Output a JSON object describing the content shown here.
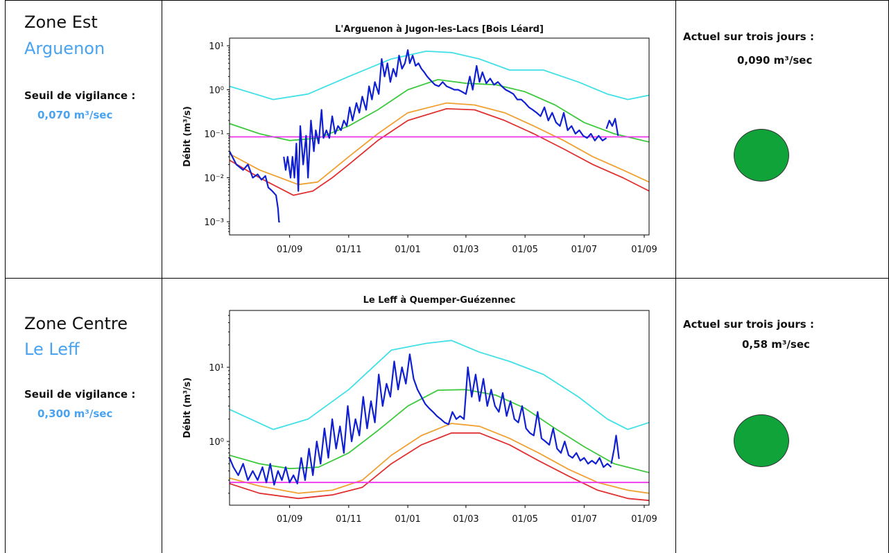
{
  "status_color": "#0fa33a",
  "panels": [
    {
      "zone": "Zone Est",
      "river": "Arguenon",
      "seuil_label": "Seuil de vigilance :",
      "seuil_value": "0,070 m³/sec",
      "actuel_label": "Actuel sur trois jours :",
      "actuel_value": "0,090 m³/sec",
      "status": "green"
    },
    {
      "zone": "Zone Centre",
      "river": "Le Leff",
      "seuil_label": "Seuil de vigilance :",
      "seuil_value": "0,300 m³/sec",
      "actuel_label": "Actuel sur trois jours :",
      "actuel_value": "0,58 m³/sec",
      "status": "green"
    }
  ],
  "chart_data": [
    {
      "type": "line",
      "title": "L'Arguenon à Jugon-les-Lacs [Bois Léard]",
      "ylabel": "Débit (m³/s)",
      "yscale": "log",
      "ylim": [
        0.0006,
        15
      ],
      "yticks": [
        "10⁻³",
        "10⁻²",
        "10⁻¹",
        "10⁰",
        "10¹"
      ],
      "xlim": [
        "2023-07-01",
        "2024-09-06"
      ],
      "xticks": [
        "01/09",
        "01/11",
        "01/01",
        "01/03",
        "01/05",
        "01/07",
        "01/09"
      ],
      "series": [
        {
          "color": "#3fe0e6",
          "x": [
            "2023-07-01",
            "2023-08-15",
            "2023-09-20",
            "2023-11-01",
            "2023-12-15",
            "2024-01-20",
            "2024-02-15",
            "2024-03-15",
            "2024-04-15",
            "2024-05-20",
            "2024-06-25",
            "2024-07-25",
            "2024-08-15",
            "2024-09-06"
          ],
          "y": [
            1.2,
            0.6,
            0.8,
            2.0,
            5.0,
            7.5,
            7.0,
            5.0,
            2.8,
            2.8,
            1.5,
            0.8,
            0.6,
            0.75
          ]
        },
        {
          "color": "#3dc93d",
          "x": [
            "2023-07-01",
            "2023-08-01",
            "2023-09-01",
            "2023-10-01",
            "2023-11-01",
            "2023-12-01",
            "2024-01-01",
            "2024-02-01",
            "2024-03-01",
            "2024-04-01",
            "2024-05-01",
            "2024-06-01",
            "2024-07-01",
            "2024-08-01",
            "2024-09-06"
          ],
          "y": [
            0.17,
            0.1,
            0.07,
            0.08,
            0.15,
            0.35,
            1.0,
            1.7,
            1.4,
            1.3,
            0.9,
            0.45,
            0.18,
            0.1,
            0.065
          ]
        },
        {
          "color": "#f0a030",
          "x": [
            "2023-07-01",
            "2023-08-01",
            "2023-09-10",
            "2023-09-30",
            "2023-11-01",
            "2023-12-01",
            "2024-01-01",
            "2024-02-10",
            "2024-03-10",
            "2024-04-10",
            "2024-05-10",
            "2024-06-10",
            "2024-07-10",
            "2024-08-10",
            "2024-09-06"
          ],
          "y": [
            0.035,
            0.015,
            0.007,
            0.008,
            0.03,
            0.1,
            0.3,
            0.5,
            0.45,
            0.3,
            0.15,
            0.07,
            0.03,
            0.015,
            0.008
          ]
        },
        {
          "color": "#e03030",
          "x": [
            "2023-07-01",
            "2023-08-01",
            "2023-09-05",
            "2023-09-25",
            "2023-10-15",
            "2023-11-01",
            "2023-12-01",
            "2024-01-01",
            "2024-02-10",
            "2024-03-10",
            "2024-04-10",
            "2024-05-10",
            "2024-06-10",
            "2024-07-10",
            "2024-08-10",
            "2024-09-06"
          ],
          "y": [
            0.025,
            0.01,
            0.004,
            0.005,
            0.01,
            0.02,
            0.07,
            0.2,
            0.37,
            0.35,
            0.2,
            0.1,
            0.045,
            0.02,
            0.01,
            0.005
          ]
        },
        {
          "color": "#ee33ee",
          "x": [
            "2023-07-01",
            "2024-09-06"
          ],
          "y": [
            0.085,
            0.085
          ]
        },
        {
          "color": "#1020d0",
          "x": [
            "2023-07-01",
            "2023-07-08",
            "2023-07-15",
            "2023-07-20",
            "2023-07-25",
            "2023-07-30",
            "2023-08-03",
            "2023-08-07",
            "2023-08-10",
            "2023-08-14",
            "2023-08-18",
            "2023-08-20",
            "2023-08-21",
            "2023-08-22"
          ],
          "y": [
            0.04,
            0.02,
            0.015,
            0.02,
            0.01,
            0.012,
            0.009,
            0.011,
            0.006,
            0.005,
            0.004,
            0.002,
            0.001,
            0.001
          ]
        },
        {
          "color": "#1020d0",
          "x": [
            "2023-08-26",
            "2023-08-28",
            "2023-08-30",
            "2023-09-02",
            "2023-09-04",
            "2023-09-06",
            "2023-09-08",
            "2023-09-10",
            "2023-09-12",
            "2023-09-15",
            "2023-09-18",
            "2023-09-20",
            "2023-09-23",
            "2023-09-26",
            "2023-09-28",
            "2023-10-01",
            "2023-10-04",
            "2023-10-06",
            "2023-10-09",
            "2023-10-12",
            "2023-10-15",
            "2023-10-18",
            "2023-10-21",
            "2023-10-24",
            "2023-10-27",
            "2023-10-30",
            "2023-11-02",
            "2023-11-05",
            "2023-11-09",
            "2023-11-12",
            "2023-11-15",
            "2023-11-19",
            "2023-11-22",
            "2023-11-25",
            "2023-11-28",
            "2023-12-02",
            "2023-12-05",
            "2023-12-08",
            "2023-12-11",
            "2023-12-14",
            "2023-12-17",
            "2023-12-20",
            "2023-12-23",
            "2023-12-26",
            "2023-12-29",
            "2024-01-01",
            "2024-01-03",
            "2024-01-06",
            "2024-01-09",
            "2024-01-12",
            "2024-01-15",
            "2024-01-18",
            "2024-01-21",
            "2024-01-25",
            "2024-01-29",
            "2024-02-02",
            "2024-02-06",
            "2024-02-10",
            "2024-02-14",
            "2024-02-18",
            "2024-02-22",
            "2024-02-26",
            "2024-03-01",
            "2024-03-05",
            "2024-03-08",
            "2024-03-12",
            "2024-03-15",
            "2024-03-18",
            "2024-03-22",
            "2024-03-26",
            "2024-03-30",
            "2024-04-03",
            "2024-04-07",
            "2024-04-11",
            "2024-04-15",
            "2024-04-19",
            "2024-04-23",
            "2024-04-27",
            "2024-05-01",
            "2024-05-05",
            "2024-05-09",
            "2024-05-13",
            "2024-05-17",
            "2024-05-21",
            "2024-05-25",
            "2024-05-29",
            "2024-06-02",
            "2024-06-06",
            "2024-06-10",
            "2024-06-14",
            "2024-06-18",
            "2024-06-22",
            "2024-06-26",
            "2024-06-30",
            "2024-07-04",
            "2024-07-08",
            "2024-07-12",
            "2024-07-16",
            "2024-07-20",
            "2024-07-24"
          ],
          "y": [
            0.03,
            0.015,
            0.03,
            0.01,
            0.03,
            0.01,
            0.06,
            0.005,
            0.15,
            0.02,
            0.09,
            0.01,
            0.2,
            0.04,
            0.12,
            0.06,
            0.35,
            0.08,
            0.12,
            0.08,
            0.25,
            0.1,
            0.15,
            0.12,
            0.2,
            0.15,
            0.4,
            0.2,
            0.5,
            0.3,
            0.7,
            0.35,
            1.2,
            0.6,
            1.5,
            0.8,
            5.0,
            2.0,
            4.0,
            1.5,
            3.0,
            2.0,
            6.0,
            3.0,
            4.0,
            8.0,
            4.0,
            6.0,
            3.5,
            4.0,
            3.0,
            2.5,
            2.0,
            1.6,
            1.3,
            1.2,
            1.5,
            1.2,
            1.1,
            1.0,
            1.0,
            0.9,
            0.8,
            2.0,
            1.0,
            3.5,
            1.5,
            2.5,
            1.4,
            1.8,
            1.3,
            1.5,
            1.2,
            1.0,
            0.9,
            0.8,
            0.6,
            0.6,
            0.5,
            0.4,
            0.35,
            0.3,
            0.25,
            0.4,
            0.2,
            0.3,
            0.18,
            0.15,
            0.3,
            0.12,
            0.15,
            0.1,
            0.12,
            0.09,
            0.08,
            0.1,
            0.07,
            0.09,
            0.07,
            0.08
          ]
        },
        {
          "color": "#1020d0",
          "x": [
            "2024-07-24",
            "2024-07-27",
            "2024-07-30",
            "2024-08-02",
            "2024-08-05"
          ],
          "y": [
            0.13,
            0.2,
            0.15,
            0.22,
            0.09
          ]
        }
      ]
    },
    {
      "type": "line",
      "title": "Le Leff à Quemper-Guézennec",
      "ylabel": "Débit (m³/s)",
      "yscale": "log",
      "ylim": [
        0.12,
        60
      ],
      "yticks": [
        "10⁰",
        "10¹"
      ],
      "xlim": [
        "2023-07-01",
        "2024-09-06"
      ],
      "xticks": [
        "01/09",
        "01/11",
        "01/01",
        "01/03",
        "01/05",
        "01/07",
        "01/09"
      ],
      "series": [
        {
          "color": "#3fe0e6",
          "x": [
            "2023-07-01",
            "2023-08-15",
            "2023-09-20",
            "2023-11-01",
            "2023-12-15",
            "2024-01-20",
            "2024-02-15",
            "2024-03-15",
            "2024-04-15",
            "2024-05-20",
            "2024-06-25",
            "2024-07-25",
            "2024-08-15",
            "2024-09-06"
          ],
          "y": [
            2.7,
            1.45,
            2.0,
            5.0,
            17,
            21,
            23,
            16,
            12,
            8,
            4.0,
            2.0,
            1.45,
            1.8
          ]
        },
        {
          "color": "#3dc93d",
          "x": [
            "2023-07-01",
            "2023-08-01",
            "2023-09-01",
            "2023-10-01",
            "2023-11-01",
            "2023-12-01",
            "2024-01-01",
            "2024-02-01",
            "2024-03-01",
            "2024-04-01",
            "2024-05-01",
            "2024-06-01",
            "2024-07-01",
            "2024-08-01",
            "2024-09-06"
          ],
          "y": [
            0.65,
            0.5,
            0.43,
            0.45,
            0.7,
            1.4,
            3.0,
            4.9,
            5.0,
            4.2,
            2.8,
            1.5,
            0.85,
            0.5,
            0.38
          ]
        },
        {
          "color": "#f0a030",
          "x": [
            "2023-07-01",
            "2023-08-01",
            "2023-09-10",
            "2023-10-15",
            "2023-11-15",
            "2023-12-15",
            "2024-01-15",
            "2024-02-15",
            "2024-03-15",
            "2024-04-15",
            "2024-05-15",
            "2024-06-15",
            "2024-07-15",
            "2024-08-15",
            "2024-09-06"
          ],
          "y": [
            0.32,
            0.25,
            0.2,
            0.22,
            0.3,
            0.65,
            1.2,
            1.75,
            1.6,
            1.1,
            0.7,
            0.42,
            0.28,
            0.22,
            0.2
          ]
        },
        {
          "color": "#e03030",
          "x": [
            "2023-07-01",
            "2023-08-01",
            "2023-09-10",
            "2023-10-15",
            "2023-11-15",
            "2023-12-15",
            "2024-01-15",
            "2024-02-15",
            "2024-03-15",
            "2024-04-15",
            "2024-05-15",
            "2024-06-15",
            "2024-07-15",
            "2024-08-15",
            "2024-09-06"
          ],
          "y": [
            0.27,
            0.2,
            0.17,
            0.19,
            0.24,
            0.5,
            0.9,
            1.3,
            1.3,
            0.9,
            0.55,
            0.34,
            0.22,
            0.17,
            0.16
          ]
        },
        {
          "color": "#ee33ee",
          "x": [
            "2023-07-01",
            "2024-09-06"
          ],
          "y": [
            0.28,
            0.28
          ]
        },
        {
          "color": "#1020d0",
          "x": [
            "2023-07-01",
            "2023-07-05",
            "2023-07-10",
            "2023-07-15",
            "2023-07-20",
            "2023-07-25",
            "2023-07-30",
            "2023-08-04",
            "2023-08-08",
            "2023-08-12",
            "2023-08-16",
            "2023-08-20",
            "2023-08-24",
            "2023-08-28",
            "2023-09-01",
            "2023-09-05",
            "2023-09-09",
            "2023-09-13",
            "2023-09-17",
            "2023-09-21",
            "2023-09-25",
            "2023-09-29",
            "2023-10-03",
            "2023-10-07",
            "2023-10-11",
            "2023-10-15",
            "2023-10-19",
            "2023-10-23",
            "2023-10-27",
            "2023-10-31",
            "2023-11-04",
            "2023-11-08",
            "2023-11-12",
            "2023-11-16",
            "2023-11-20",
            "2023-11-24",
            "2023-11-28",
            "2023-12-02",
            "2023-12-06",
            "2023-12-10",
            "2023-12-14",
            "2023-12-18",
            "2023-12-22",
            "2023-12-26",
            "2023-12-30",
            "2024-01-03",
            "2024-01-07",
            "2024-01-11",
            "2024-01-15",
            "2024-01-19",
            "2024-01-23",
            "2024-01-27",
            "2024-01-31",
            "2024-02-04",
            "2024-02-08",
            "2024-02-12",
            "2024-02-16",
            "2024-02-20",
            "2024-02-24",
            "2024-02-28",
            "2024-03-03",
            "2024-03-07",
            "2024-03-11",
            "2024-03-15",
            "2024-03-19",
            "2024-03-23",
            "2024-03-27",
            "2024-03-31",
            "2024-04-04",
            "2024-04-08",
            "2024-04-12",
            "2024-04-16",
            "2024-04-20",
            "2024-04-24",
            "2024-04-28",
            "2024-05-02",
            "2024-05-06",
            "2024-05-10",
            "2024-05-14",
            "2024-05-18",
            "2024-05-22",
            "2024-05-26",
            "2024-05-30",
            "2024-06-03",
            "2024-06-07",
            "2024-06-11",
            "2024-06-15",
            "2024-06-19",
            "2024-06-23",
            "2024-06-27",
            "2024-07-01",
            "2024-07-05",
            "2024-07-09",
            "2024-07-13",
            "2024-07-17",
            "2024-07-21",
            "2024-07-25",
            "2024-07-29"
          ],
          "y": [
            0.6,
            0.45,
            0.35,
            0.5,
            0.3,
            0.4,
            0.3,
            0.45,
            0.28,
            0.5,
            0.26,
            0.4,
            0.3,
            0.45,
            0.28,
            0.35,
            0.27,
            0.6,
            0.3,
            0.8,
            0.35,
            1.0,
            0.5,
            1.5,
            0.6,
            2.0,
            0.8,
            1.6,
            0.7,
            3.0,
            1.0,
            2.0,
            1.2,
            4.0,
            1.5,
            3.5,
            1.8,
            8.0,
            3.0,
            6.0,
            4.0,
            12.0,
            5.0,
            10.0,
            6.0,
            15.0,
            7.0,
            5.0,
            4.0,
            3.2,
            2.8,
            2.5,
            2.2,
            2.0,
            1.8,
            1.7,
            2.5,
            2.0,
            2.2,
            2.0,
            10.0,
            4.0,
            8.0,
            3.5,
            7.0,
            3.0,
            5.0,
            3.0,
            2.5,
            4.5,
            2.2,
            3.5,
            2.0,
            1.8,
            3.0,
            1.5,
            1.3,
            1.2,
            2.5,
            1.1,
            1.0,
            0.9,
            1.5,
            0.8,
            0.7,
            1.0,
            0.65,
            0.6,
            0.7,
            0.55,
            0.6,
            0.5,
            0.55,
            0.5,
            0.6,
            0.45,
            0.5,
            0.45
          ]
        },
        {
          "color": "#1020d0",
          "x": [
            "2024-07-29",
            "2024-08-01",
            "2024-08-03",
            "2024-08-06"
          ],
          "y": [
            0.5,
            0.8,
            1.2,
            0.58
          ]
        }
      ]
    }
  ]
}
